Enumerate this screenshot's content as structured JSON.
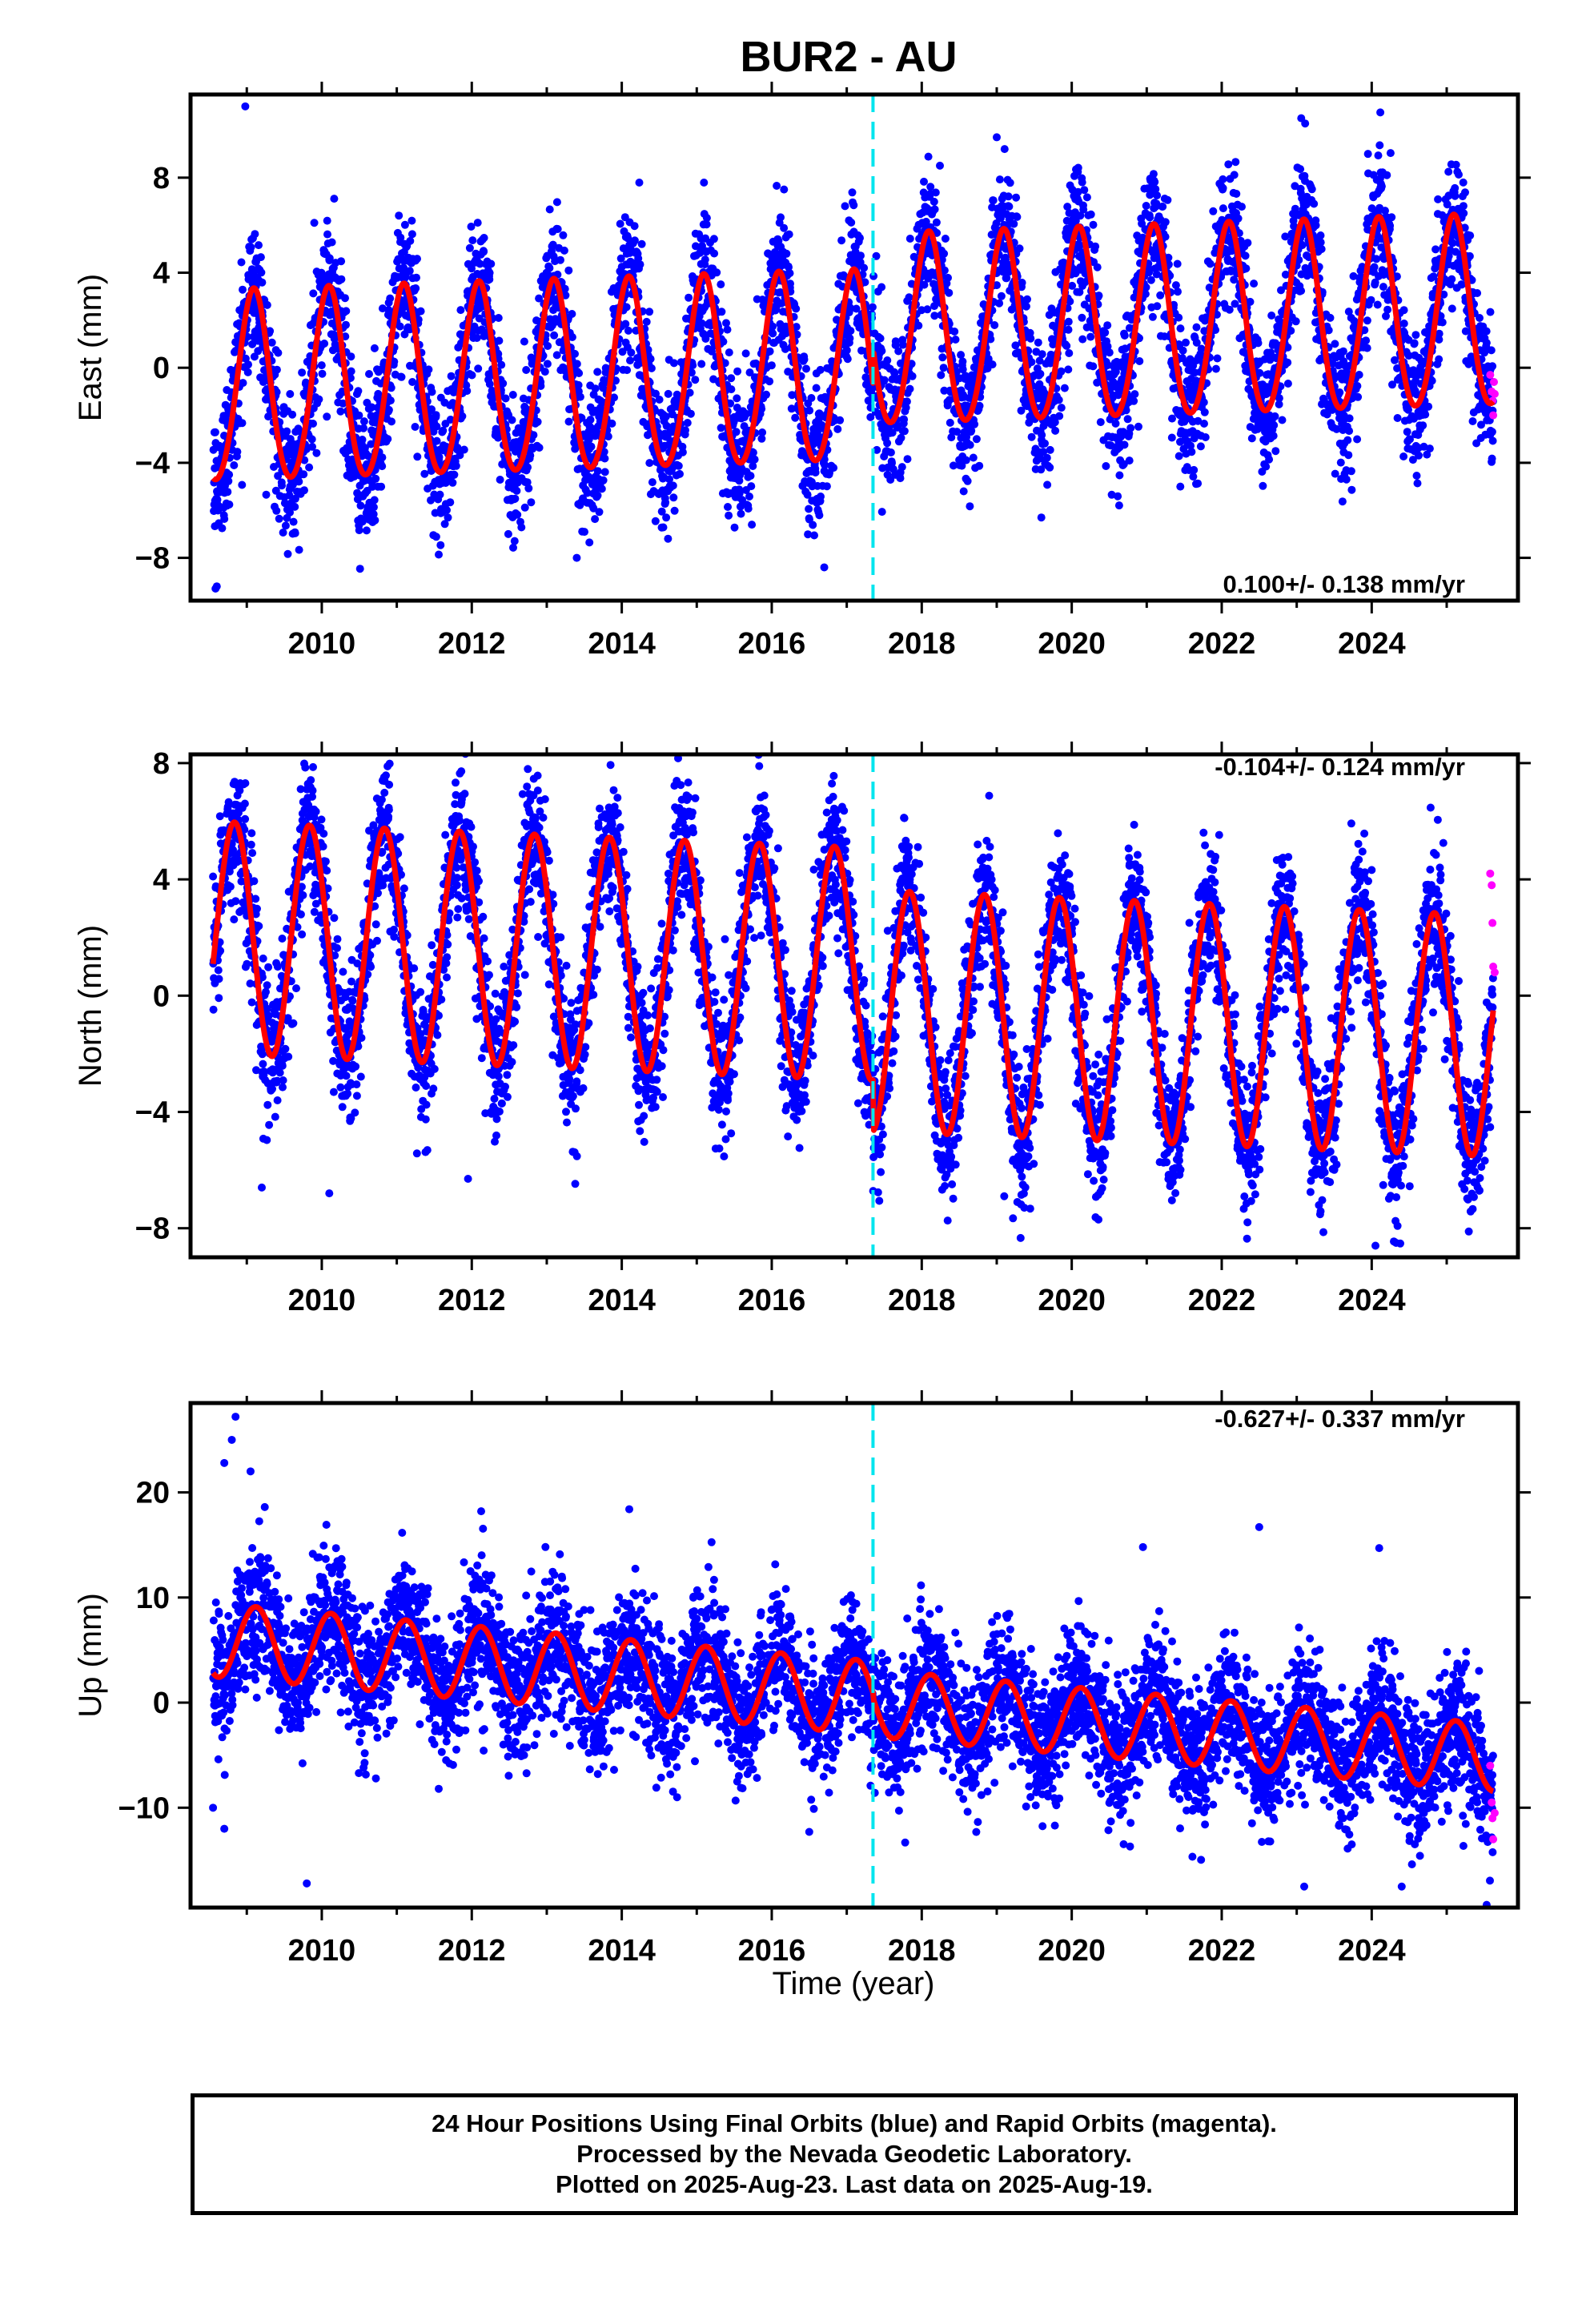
{
  "title": "BUR2 - AU",
  "colors": {
    "final_orbits": "#0000ff",
    "rapid_orbits": "#ff00ff",
    "model_fit": "#ff0000",
    "offset_line": "#00e5ee",
    "frame": "#000000"
  },
  "xlabel": "Time (year)",
  "footer": {
    "line1": "24 Hour Positions Using Final Orbits (blue) and Rapid Orbits (magenta).",
    "line2": "Processed by the Nevada Geodetic Laboratory.",
    "line3": "Plotted on 2025-Aug-23. Last data on 2025-Aug-19."
  },
  "chart_data": [
    {
      "type": "scatter",
      "name": "east",
      "ylabel": "East (mm)",
      "rate_text": "0.100+/- 0.138 mm/yr",
      "xlim": [
        2008.25,
        2025.95
      ],
      "ylim": [
        -9.8,
        11.5
      ],
      "xticks": [
        2010,
        2012,
        2014,
        2016,
        2018,
        2020,
        2022,
        2024
      ],
      "xtick_labels": [
        "2010",
        "2012",
        "2014",
        "2016",
        "2018",
        "2020",
        "2022",
        "2024"
      ],
      "yticks": [
        -8,
        -4,
        0,
        4,
        8
      ],
      "ytick_labels": [
        "−8",
        "−4",
        "0",
        "4",
        "8"
      ],
      "offset_epoch": 2017.35,
      "model": {
        "t0": 2008.55,
        "t1": 2025.62,
        "offset_a": -1.0,
        "offset_b": 0.5,
        "trend": 0.1,
        "amp_a": 4.0,
        "amp_b": 4.0,
        "phase": 1.0,
        "amp2": 0.3,
        "phase2": 0.2
      },
      "scatter": {
        "noise": 1.5,
        "outliers": [
          [
            2008.98,
            11.0
          ],
          [
            2009.9,
            6.1
          ],
          [
            2016.7,
            -8.4
          ],
          [
            2008.6,
            -9.2
          ],
          [
            2019.0,
            9.7
          ],
          [
            2023.95,
            9.0
          ],
          [
            2013.4,
            -8.0
          ]
        ]
      },
      "rapid": {
        "x": [
          2025.58,
          2025.6,
          2025.61,
          2025.62,
          2025.63,
          2025.64
        ],
        "y": [
          -0.3,
          -1.0,
          -1.4,
          -2.0,
          -0.6,
          -1.1
        ]
      }
    },
    {
      "type": "scatter",
      "name": "north",
      "ylabel": "North (mm)",
      "rate_text": "-0.104+/- 0.124 mm/yr",
      "xlim": [
        2008.25,
        2025.95
      ],
      "ylim": [
        -9.0,
        8.3
      ],
      "xticks": [
        2010,
        2012,
        2014,
        2016,
        2018,
        2020,
        2022,
        2024
      ],
      "xtick_labels": [
        "2010",
        "2012",
        "2014",
        "2016",
        "2018",
        "2020",
        "2022",
        "2024"
      ],
      "yticks": [
        -8,
        -4,
        0,
        4,
        8
      ],
      "ytick_labels": [
        "−8",
        "−4",
        "0",
        "4",
        "8"
      ],
      "offset_epoch": 2017.35,
      "model": {
        "t0": 2008.55,
        "t1": 2025.62,
        "offset_a": 2.0,
        "offset_b": 0.4,
        "trend": -0.104,
        "amp_a": 4.0,
        "amp_b": 4.15,
        "phase": 2.6,
        "amp2": 0.0,
        "phase2": 0.0
      },
      "scatter": {
        "noise": 1.2,
        "outliers": [
          [
            2015.6,
            8.5
          ],
          [
            2024.05,
            -8.6
          ],
          [
            2009.2,
            -6.6
          ],
          [
            2010.1,
            -6.8
          ],
          [
            2011.95,
            -6.3
          ],
          [
            2019.1,
            -6.9
          ]
        ]
      },
      "rapid": {
        "x": [
          2025.58,
          2025.6,
          2025.61,
          2025.62,
          2025.64
        ],
        "y": [
          4.2,
          3.8,
          2.5,
          1.0,
          0.8
        ]
      }
    },
    {
      "type": "scatter",
      "name": "up",
      "ylabel": "Up (mm)",
      "rate_text": "-0.627+/- 0.337 mm/yr",
      "xlim": [
        2008.25,
        2025.95
      ],
      "ylim": [
        -19.5,
        28.5
      ],
      "xticks": [
        2010,
        2012,
        2014,
        2016,
        2018,
        2020,
        2022,
        2024
      ],
      "xtick_labels": [
        "2010",
        "2012",
        "2014",
        "2016",
        "2018",
        "2020",
        "2022",
        "2024"
      ],
      "yticks": [
        -10,
        0,
        10,
        20
      ],
      "ytick_labels": [
        "−10",
        "0",
        "10",
        "20"
      ],
      "offset_epoch": 2017.35,
      "model": {
        "t0": 2008.55,
        "t1": 2025.62,
        "offset_a": 6.0,
        "offset_b": 5.5,
        "trend": -0.627,
        "amp_a": 3.5,
        "amp_b": 3.2,
        "phase": 0.8,
        "amp2": 0.0,
        "phase2": 0.0
      },
      "scatter": {
        "noise": 3.2,
        "outliers": [
          [
            2008.85,
            27.2
          ],
          [
            2008.8,
            25.0
          ],
          [
            2008.7,
            22.8
          ],
          [
            2009.05,
            22.0
          ],
          [
            2014.1,
            18.4
          ],
          [
            2022.5,
            16.7
          ],
          [
            2024.1,
            14.7
          ],
          [
            2020.95,
            14.8
          ],
          [
            2009.8,
            -17.2
          ],
          [
            2008.55,
            -10.0
          ],
          [
            2024.4,
            -17.5
          ],
          [
            2023.1,
            -17.5
          ],
          [
            2016.5,
            -12.3
          ],
          [
            2008.7,
            -12.0
          ]
        ]
      },
      "rapid": {
        "x": [
          2025.58,
          2025.6,
          2025.61,
          2025.62,
          2025.64
        ],
        "y": [
          -6.0,
          -9.5,
          -11.0,
          -13.0,
          -10.5
        ]
      }
    }
  ]
}
